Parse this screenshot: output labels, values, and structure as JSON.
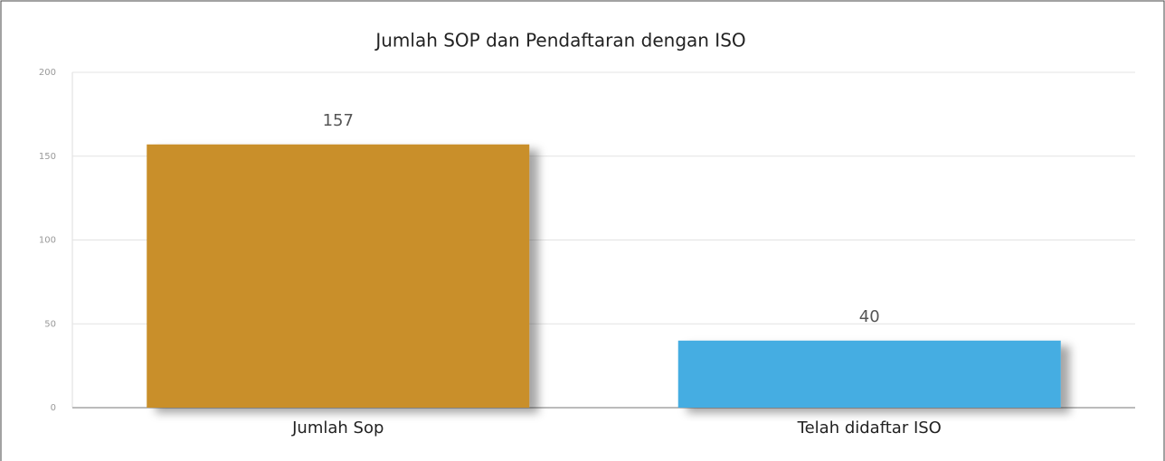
{
  "chart_data": {
    "type": "bar",
    "title": "Jumlah SOP dan Pendaftaran dengan ISO",
    "categories": [
      "Jumlah Sop",
      "Telah didaftar ISO"
    ],
    "values": [
      157,
      40
    ],
    "colors": [
      "#c98f2a",
      "#45ade2"
    ],
    "ylim": [
      0,
      200
    ],
    "yticks": [
      0,
      50,
      100,
      150,
      200
    ],
    "grid": true
  }
}
